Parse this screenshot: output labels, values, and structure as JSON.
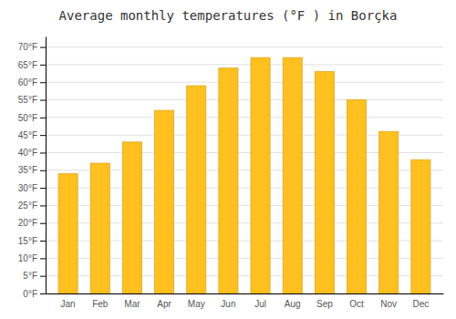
{
  "chart_data": {
    "type": "bar",
    "title": "Average monthly temperatures (°F ) in Borçka",
    "categories": [
      "Jan",
      "Feb",
      "Mar",
      "Apr",
      "May",
      "Jun",
      "Jul",
      "Aug",
      "Sep",
      "Oct",
      "Nov",
      "Dec"
    ],
    "values": [
      34,
      37,
      43,
      52,
      59,
      64,
      67,
      67,
      63,
      55,
      46,
      38
    ],
    "color": "#FFC020",
    "ylim": [
      0,
      73
    ],
    "yticks": [
      {
        "value": 0,
        "label": "0°F"
      },
      {
        "value": 5,
        "label": "5°F"
      },
      {
        "value": 10,
        "label": "10°F"
      },
      {
        "value": 15,
        "label": "15°F"
      },
      {
        "value": 20,
        "label": "20°F"
      },
      {
        "value": 25,
        "label": "25°F"
      },
      {
        "value": 30,
        "label": "30°F"
      },
      {
        "value": 35,
        "label": "35°F"
      },
      {
        "value": 40,
        "label": "40°F"
      },
      {
        "value": 45,
        "label": "45°F"
      },
      {
        "value": 50,
        "label": "50°F"
      },
      {
        "value": 55,
        "label": "55°F"
      },
      {
        "value": 60,
        "label": "60°F"
      },
      {
        "value": 65,
        "label": "65°F"
      },
      {
        "value": 70,
        "label": "70°F"
      }
    ],
    "grid": true
  }
}
